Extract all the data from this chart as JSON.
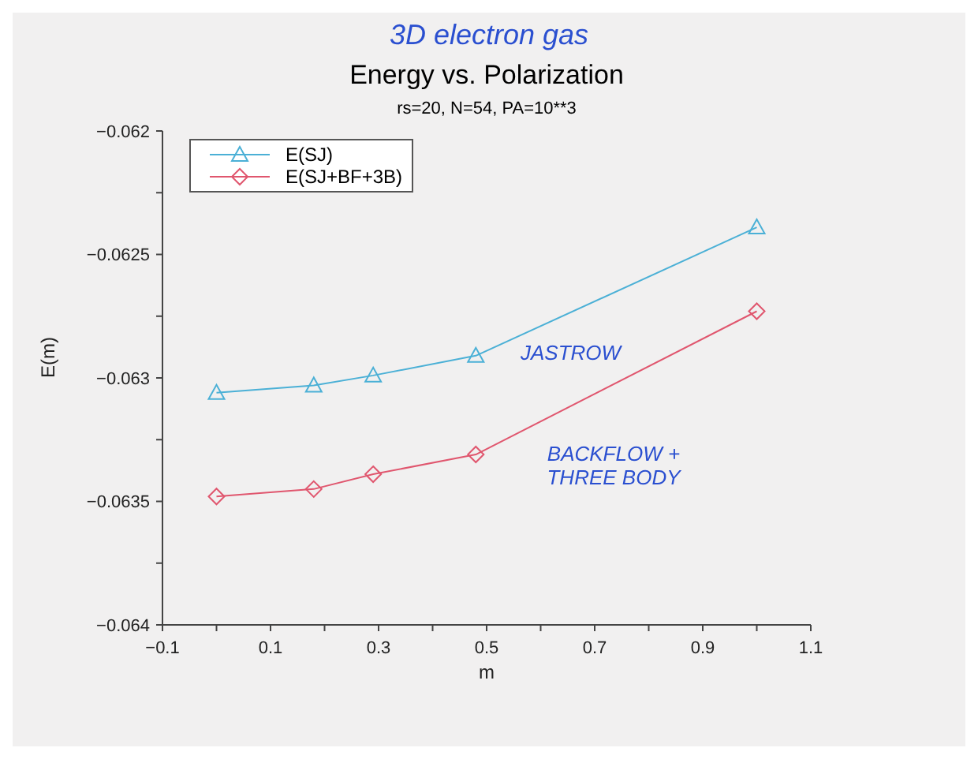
{
  "chart_data": {
    "type": "line",
    "title": "Energy vs. Polarization",
    "subtitle": "rs=20, N=54, PA=10**3",
    "xlabel": "m",
    "ylabel": "E(m)",
    "x": [
      0,
      0.18,
      0.29,
      0.48,
      1.0
    ],
    "series": [
      {
        "name": "E(SJ)",
        "color": "#4bb0d6",
        "marker": "triangle",
        "values": [
          -0.06306,
          -0.06303,
          -0.06299,
          -0.06291,
          -0.06239
        ]
      },
      {
        "name": "E(SJ+BF+3B)",
        "color": "#e0566e",
        "marker": "diamond",
        "values": [
          -0.06348,
          -0.06345,
          -0.06339,
          -0.06331,
          -0.06273
        ]
      }
    ],
    "xlim": [
      -0.1,
      1.1
    ],
    "xticks": [
      -0.1,
      {
        "value": 0,
        "label": null
      },
      0.1,
      {
        "value": 0.2,
        "label": null
      },
      0.3,
      {
        "value": 0.4,
        "label": null
      },
      0.5,
      {
        "value": 0.6,
        "label": null
      },
      0.7,
      {
        "value": 0.8,
        "label": null
      },
      0.9,
      {
        "value": 1.0,
        "label": null
      },
      1.1
    ],
    "ylim": [
      -0.064,
      -0.062
    ],
    "yticks": [
      -0.064,
      {
        "value": -0.06375,
        "label": null
      },
      -0.0635,
      {
        "value": -0.06325,
        "label": null
      },
      -0.063,
      {
        "value": -0.06275,
        "label": null
      },
      -0.0625,
      {
        "value": -0.06225,
        "label": null
      },
      -0.062
    ],
    "grid": false,
    "legend": "top left",
    "line_style": "solid",
    "annotations": [
      "3D electron gas",
      "JASTROW",
      "BACKFLOW + THREE BODY"
    ]
  }
}
